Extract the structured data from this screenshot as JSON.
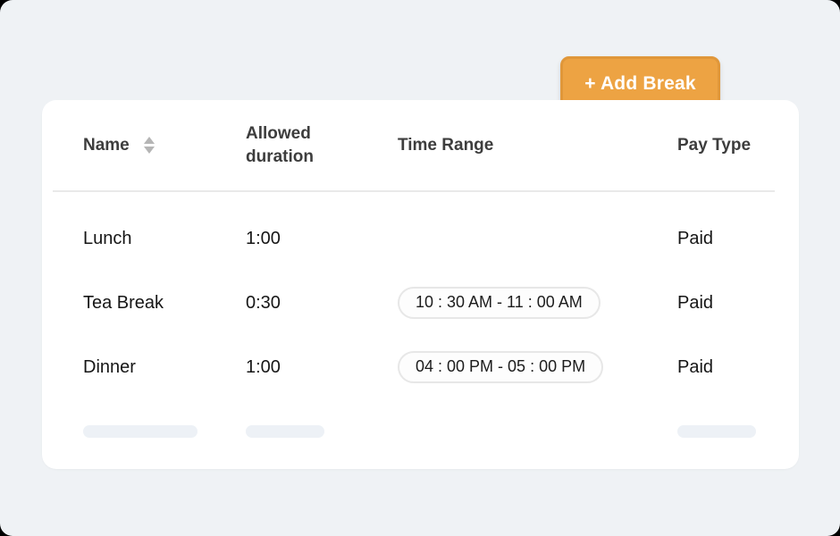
{
  "page": {
    "background_color": "#eff2f5",
    "card_background": "#ffffff"
  },
  "toolbar": {
    "add_break_label": "+ Add Break",
    "button_color": "#eda343",
    "button_border_color": "#e0973a",
    "button_text_color": "#ffffff"
  },
  "table": {
    "columns": [
      {
        "label": "Name",
        "sortable": true
      },
      {
        "label": "Allowed duration",
        "sortable": false
      },
      {
        "label": "Time Range",
        "sortable": false
      },
      {
        "label": "Pay Type",
        "sortable": false
      }
    ],
    "rows": [
      {
        "name": "Lunch",
        "allowed_duration": "1:00",
        "time_range": "",
        "pay_type": "Paid"
      },
      {
        "name": "Tea Break",
        "allowed_duration": "0:30",
        "time_range": "10 : 30 AM - 11 : 00 AM",
        "pay_type": "Paid"
      },
      {
        "name": "Dinner",
        "allowed_duration": "1:00",
        "time_range": "04 : 00 PM - 05 : 00 PM",
        "pay_type": "Paid"
      }
    ],
    "loading_row": {
      "present": true,
      "skeleton_color": "#edf1f6"
    }
  }
}
